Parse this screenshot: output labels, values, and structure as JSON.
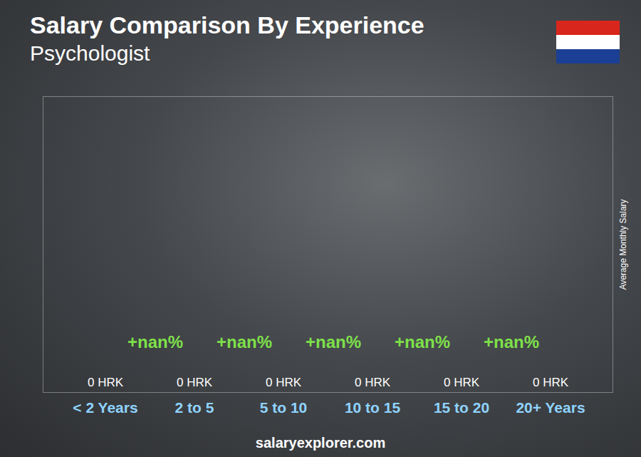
{
  "chart_data": {
    "type": "bar",
    "title": "Salary Comparison By Experience",
    "subtitle": "Psychologist",
    "categories": [
      "< 2 Years",
      "2 to 5",
      "5 to 10",
      "10 to 15",
      "15 to 20",
      "20+ Years"
    ],
    "values": [
      0,
      0,
      0,
      0,
      0,
      0
    ],
    "value_labels": [
      "0 HRK",
      "0 HRK",
      "0 HRK",
      "0 HRK",
      "0 HRK",
      "0 HRK"
    ],
    "annotations": [
      "+nan%",
      "+nan%",
      "+nan%",
      "+nan%",
      "+nan%"
    ],
    "y_label": "Average Monthly Salary",
    "source": "salaryexplorer.com",
    "color": "#1ea7e8",
    "ylim": [
      0,
      1
    ],
    "yticks": [],
    "data_labels": true,
    "tick_labels": "x"
  }
}
